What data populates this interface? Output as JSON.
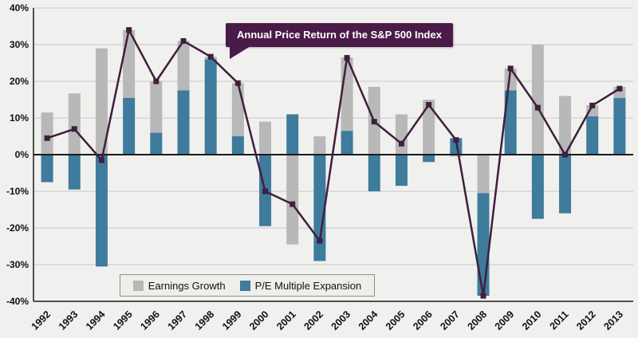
{
  "annotation": {
    "label": "Annual Price Return of the S&P 500 Index",
    "bg_color": "#4a1b48"
  },
  "legend": {
    "items": [
      {
        "label": "Earnings Growth",
        "color": "#b8b8b8"
      },
      {
        "label": "P/E Multiple Expansion",
        "color": "#3e7b9c"
      }
    ]
  },
  "chart_data": {
    "type": "bar",
    "title": "Annual Price Return of the S&P 500 Index",
    "categories": [
      "1992",
      "1993",
      "1994",
      "1995",
      "1996",
      "1997",
      "1998",
      "1999",
      "2000",
      "2001",
      "2002",
      "2003",
      "2004",
      "2005",
      "2006",
      "2007",
      "2008",
      "2009",
      "2010",
      "2011",
      "2012",
      "2013"
    ],
    "series": [
      {
        "name": "Earnings Growth",
        "type": "bar",
        "color": "#b8b8b8",
        "values": [
          11.5,
          16.7,
          29,
          18.5,
          14,
          13.5,
          0.7,
          14.5,
          9,
          -24.5,
          5,
          20,
          18.5,
          11,
          15,
          -0.5,
          -10.5,
          6,
          30,
          16,
          3,
          3
        ]
      },
      {
        "name": "P/E Multiple Expansion",
        "type": "bar",
        "color": "#3e7b9c",
        "values": [
          -7.5,
          -9.5,
          -30.5,
          15.5,
          6,
          17.5,
          26,
          5,
          -19.5,
          11,
          -29,
          6.5,
          -10,
          -8.5,
          -2,
          4.5,
          -28,
          17.5,
          -17.5,
          -16,
          10.5,
          15.5
        ]
      },
      {
        "name": "Annual Price Return",
        "type": "line",
        "color": "#3e1f3c",
        "values": [
          4.5,
          7,
          -1.5,
          34,
          20,
          31,
          26.7,
          19.5,
          -10,
          -13.5,
          -23.5,
          26.4,
          9,
          3,
          13.6,
          4,
          -38.5,
          23.5,
          12.8,
          0,
          13.4,
          18
        ]
      }
    ],
    "xlabel": "",
    "ylabel": "",
    "ylim": [
      -40,
      40
    ],
    "ytick_step": 10,
    "ytick_suffix": "%",
    "grid": true,
    "legend_position": "bottom-left-inside",
    "colors": {
      "background": "#f0f0ee",
      "grid": "#c9c9c9",
      "axis": "#1a1a1a",
      "tick_text": "#111111"
    }
  }
}
